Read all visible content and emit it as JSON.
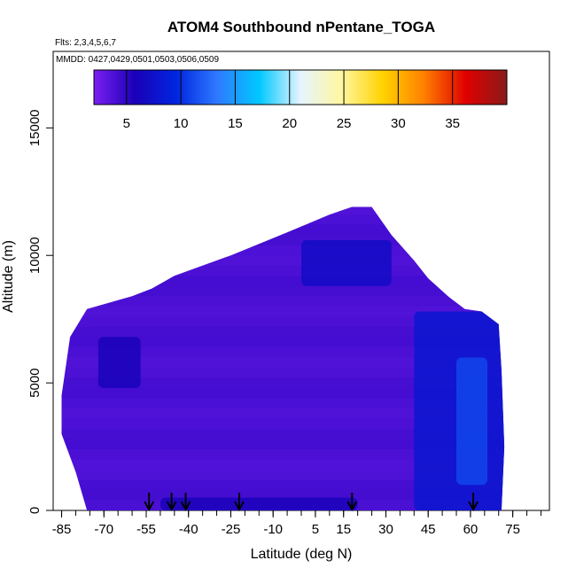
{
  "chart_data": {
    "type": "heatmap",
    "title": "ATOM4 Southbound nPentane_TOGA",
    "flights_label": "Flts: 2,3,4,5,6,7",
    "dates_label": "MMDD: 0427,0429,0501,0503,0506,0509",
    "xlabel": "Latitude (deg N)",
    "ylabel": "Altitude (m)",
    "xlim": [
      -88,
      88
    ],
    "ylim": [
      0,
      18000
    ],
    "x_ticks": [
      -85,
      -70,
      -55,
      -40,
      -25,
      -10,
      5,
      15,
      30,
      45,
      60,
      75
    ],
    "x_tick_labels": [
      "-85",
      "-70",
      "-55",
      "-40",
      "-25",
      "-10",
      "5",
      "15",
      "30",
      "45",
      "60",
      "75"
    ],
    "y_ticks": [
      0,
      5000,
      10000,
      15000
    ],
    "y_tick_labels": [
      "0",
      "5000",
      "10000",
      "15000"
    ],
    "colorbar": {
      "range": [
        2,
        40
      ],
      "ticks": [
        5,
        10,
        15,
        20,
        25,
        30,
        35
      ],
      "tick_labels": [
        "5",
        "10",
        "15",
        "20",
        "25",
        "30",
        "35"
      ],
      "stops": [
        "#7b1ff0",
        "#1a00b8",
        "#0026e0",
        "#2f7bff",
        "#00c8ff",
        "#e6f4ff",
        "#fff7a0",
        "#ffd200",
        "#ff7f00",
        "#e00000",
        "#8a1a1a"
      ]
    },
    "profile_outline": [
      [
        -85,
        4500
      ],
      [
        -82,
        6800
      ],
      [
        -76,
        7900
      ],
      [
        -60,
        8400
      ],
      [
        -53,
        8700
      ],
      [
        -45,
        9200
      ],
      [
        -25,
        10000
      ],
      [
        -5,
        10900
      ],
      [
        10,
        11600
      ],
      [
        18,
        11900
      ],
      [
        25,
        11900
      ],
      [
        32,
        10800
      ],
      [
        40,
        9800
      ],
      [
        45,
        9100
      ],
      [
        52,
        8400
      ],
      [
        58,
        7900
      ],
      [
        64,
        7800
      ],
      [
        70,
        7300
      ],
      [
        71,
        5500
      ],
      [
        72,
        2500
      ],
      [
        71,
        0
      ],
      [
        -76,
        0
      ],
      [
        -80,
        1500
      ],
      [
        -85,
        3000
      ]
    ],
    "high_regions": [
      {
        "lat": [
          -72,
          -57
        ],
        "alt": [
          4800,
          6800
        ],
        "level": 4
      },
      {
        "lat": [
          0,
          32
        ],
        "alt": [
          8800,
          10600
        ],
        "level": 5
      },
      {
        "lat": [
          40,
          72
        ],
        "alt": [
          0,
          7800
        ],
        "level": 6
      },
      {
        "lat": [
          55,
          66
        ],
        "alt": [
          1000,
          6000
        ],
        "level": 9
      },
      {
        "lat": [
          -50,
          20
        ],
        "alt": [
          0,
          500
        ],
        "level": 4
      }
    ],
    "arrow_latitudes": [
      -54,
      -46,
      -41,
      -22,
      18,
      61
    ]
  }
}
